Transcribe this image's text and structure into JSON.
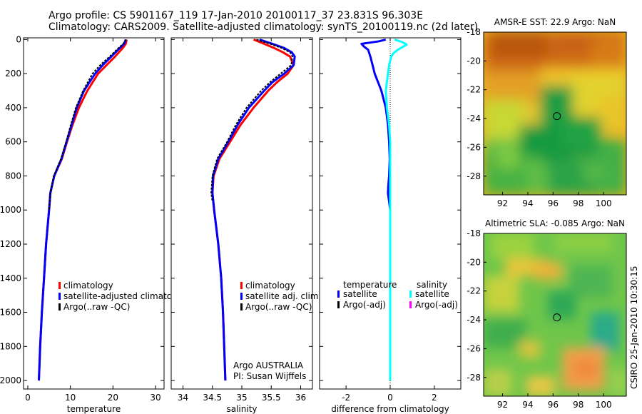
{
  "header": {
    "line1": "Argo profile: CS 5901167_119 17-Jan-2010 20100117_37 23.831S 96.303E",
    "line2": "Climatology: CARS2009. Satellite-adjusted climatology: synTS_20100119.nc (2d later)"
  },
  "side_label": "CSIRO 25-Jan-2010 10:30:15",
  "colors": {
    "climatology": "#ff0000",
    "satellite": "#0000ff",
    "argo": "#000000",
    "sal_satellite": "#00ffff",
    "sal_argo": "#ff00ff"
  },
  "chart_data": [
    {
      "type": "line",
      "name": "temperature-profile",
      "xlabel": "temperature",
      "ylabel": "",
      "xlim": [
        -1,
        32
      ],
      "ylim": [
        2050,
        -10
      ],
      "xticks": [
        0,
        10,
        20,
        30
      ],
      "yticks": [
        0,
        200,
        400,
        600,
        800,
        1000,
        1200,
        1400,
        1600,
        1800,
        2000
      ],
      "legend": [
        "climatology",
        "satellite-adjusted climatology",
        "Argo(..raw -QC)"
      ],
      "series": [
        {
          "name": "climatology",
          "color": "#ff0000",
          "depth": [
            0,
            25,
            50,
            100,
            150,
            200,
            300,
            400,
            500,
            600,
            700,
            800,
            900,
            1000,
            1200,
            1400,
            1600,
            1800,
            2000
          ],
          "values": [
            23.2,
            23.0,
            22.3,
            20.5,
            18.5,
            16.5,
            14.0,
            12.0,
            10.5,
            9.2,
            8.0,
            6.2,
            5.3,
            5.0,
            4.3,
            3.8,
            3.3,
            2.9,
            2.6
          ]
        },
        {
          "name": "satellite-adjusted",
          "color": "#0000ff",
          "depth": [
            0,
            25,
            50,
            100,
            150,
            200,
            300,
            400,
            500,
            600,
            700,
            800,
            900,
            1000,
            1200,
            1400,
            1600,
            1800,
            2000
          ],
          "values": [
            23.0,
            22.6,
            21.6,
            19.6,
            17.6,
            15.8,
            13.2,
            11.5,
            10.3,
            9.1,
            7.9,
            6.2,
            5.3,
            5.0,
            4.3,
            3.8,
            3.3,
            2.9,
            2.6
          ]
        },
        {
          "name": "argo",
          "color": "#000000",
          "depth": [
            0,
            25,
            50,
            100,
            150,
            200,
            300,
            400,
            500,
            600,
            700,
            800,
            900,
            1000
          ],
          "values": [
            23.1,
            22.4,
            21.3,
            19.2,
            17.0,
            15.2,
            13.0,
            11.3,
            10.1,
            9.0,
            7.8,
            6.1,
            5.3,
            5.0
          ]
        }
      ]
    },
    {
      "type": "line",
      "name": "salinity-profile",
      "xlabel": "salinity",
      "ylabel": "",
      "xlim": [
        33.8,
        36.2
      ],
      "ylim": [
        2050,
        -10
      ],
      "xticks": [
        34,
        34.5,
        35,
        35.5,
        36
      ],
      "legend": [
        "climatology",
        "satellite adj. clim.",
        "Argo(..raw -QC)"
      ],
      "annotation": [
        "Argo AUSTRALIA",
        "PI: Susan Wijffels"
      ],
      "series": [
        {
          "name": "climatology",
          "color": "#ff0000",
          "depth": [
            0,
            25,
            50,
            75,
            100,
            150,
            200,
            250,
            300,
            400,
            500,
            600,
            700,
            800,
            900,
            1000,
            1200,
            1400,
            1600,
            1800,
            2000
          ],
          "values": [
            35.2,
            35.38,
            35.55,
            35.7,
            35.82,
            35.88,
            35.78,
            35.6,
            35.45,
            35.2,
            34.98,
            34.8,
            34.62,
            34.52,
            34.5,
            34.53,
            34.6,
            34.65,
            34.68,
            34.7,
            34.72
          ]
        },
        {
          "name": "satellite-adjusted",
          "color": "#0000ff",
          "depth": [
            0,
            25,
            50,
            75,
            100,
            150,
            200,
            250,
            300,
            400,
            500,
            600,
            700,
            800,
            900,
            1000,
            1200,
            1400,
            1600,
            1800,
            2000
          ],
          "values": [
            35.3,
            35.52,
            35.72,
            35.85,
            35.9,
            35.88,
            35.72,
            35.52,
            35.38,
            35.12,
            34.93,
            34.77,
            34.6,
            34.51,
            34.5,
            34.53,
            34.6,
            34.65,
            34.68,
            34.7,
            34.72
          ]
        },
        {
          "name": "argo",
          "color": "#000000",
          "depth": [
            0,
            25,
            50,
            75,
            100,
            150,
            200,
            250,
            300,
            400,
            500,
            600,
            700,
            800,
            900,
            950
          ],
          "values": [
            35.25,
            35.48,
            35.68,
            35.82,
            35.86,
            35.84,
            35.66,
            35.48,
            35.33,
            35.08,
            34.9,
            34.75,
            34.58,
            34.5,
            34.48,
            34.5
          ]
        }
      ]
    },
    {
      "type": "line",
      "name": "difference-profile",
      "xlabel": "difference from climatology",
      "ylabel": "",
      "xlim": [
        -3.2,
        3.2
      ],
      "ylim": [
        2050,
        -10
      ],
      "xticks": [
        -2,
        0,
        2
      ],
      "legend": {
        "temperature": "temperature",
        "salinity": "salinity",
        "t_sat": "satellite",
        "t_argo": "Argo(-adj)",
        "s_sat": "satellite",
        "s_argo": "Argo(-adj)"
      },
      "series": [
        {
          "name": "temperature-satellite",
          "color": "#0000ff",
          "depth": [
            0,
            10,
            25,
            40,
            60,
            100,
            150,
            200,
            300,
            400,
            500,
            600,
            700,
            800,
            850,
            900,
            950,
            1000,
            1200,
            1400,
            1600,
            1800,
            2000
          ],
          "values": [
            -0.2,
            -0.5,
            -1.3,
            -1.2,
            -1.0,
            -0.9,
            -0.8,
            -0.7,
            -0.4,
            -0.2,
            -0.1,
            -0.05,
            -0.02,
            -0.05,
            -0.08,
            -0.1,
            -0.05,
            0,
            0,
            0,
            0,
            0,
            0
          ]
        },
        {
          "name": "salinity-satellite",
          "color": "#00ffff",
          "depth": [
            0,
            15,
            30,
            45,
            60,
            80,
            100,
            150,
            200,
            300,
            400,
            500,
            600,
            700,
            800,
            900,
            1000,
            1200,
            1400,
            1600,
            1800,
            2000
          ],
          "values": [
            0.2,
            0.55,
            0.75,
            0.55,
            0.35,
            0.15,
            0.05,
            -0.05,
            -0.1,
            -0.2,
            -0.15,
            -0.05,
            0,
            0,
            0,
            0,
            0,
            0,
            0,
            0,
            0,
            0
          ]
        }
      ]
    },
    {
      "type": "heatmap",
      "name": "amsre-sst-map",
      "title": "AMSR-E SST: 22.9 Argo: NaN",
      "xlim": [
        90.5,
        101.8
      ],
      "ylim": [
        -29.3,
        -18
      ],
      "xticks": [
        92,
        94,
        96,
        98,
        100
      ],
      "yticks": [
        -18,
        -20,
        -22,
        -24,
        -26,
        -28
      ],
      "marker": {
        "lon": 96.3,
        "lat": -23.83
      }
    },
    {
      "type": "heatmap",
      "name": "altimetric-sla-map",
      "title": "Altimetric SLA: -0.085 Argo: NaN",
      "xlim": [
        90.5,
        101.8
      ],
      "ylim": [
        -29.3,
        -18
      ],
      "xticks": [
        92,
        94,
        96,
        98,
        100
      ],
      "yticks": [
        -18,
        -20,
        -22,
        -24,
        -26,
        -28
      ],
      "marker": {
        "lon": 96.3,
        "lat": -23.83
      }
    }
  ]
}
